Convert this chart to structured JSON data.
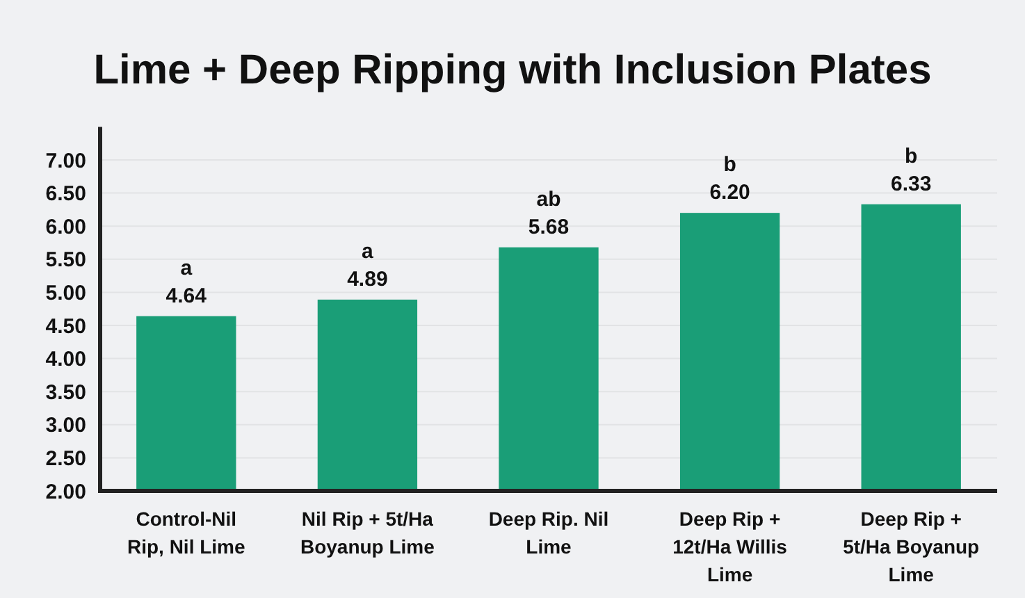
{
  "chart_data": {
    "type": "bar",
    "title": "Lime + Deep Ripping with Inclusion Plates",
    "categories": [
      "Control-Nil Rip, Nil Lime",
      "Nil Rip + 5t/Ha Boyanup Lime",
      "Deep Rip. Nil Lime",
      "Deep Rip + 12t/Ha Willis Lime",
      "Deep Rip + 5t/Ha Boyanup Lime"
    ],
    "values": [
      4.64,
      4.89,
      5.68,
      6.2,
      6.33
    ],
    "color": "#1a9e77",
    "data_labels": true,
    "value_labels": [
      "4.64",
      "4.89",
      "5.68",
      "6.20",
      "6.33"
    ],
    "annotations": [
      {
        "text": "a",
        "x": "Control-Nil Rip, Nil Lime",
        "y": 4.64
      },
      {
        "text": "a",
        "x": "Nil Rip + 5t/Ha Boyanup Lime",
        "y": 4.89
      },
      {
        "text": "ab",
        "x": "Deep Rip. Nil Lime",
        "y": 5.68
      },
      {
        "text": "b",
        "x": "Deep Rip + 12t/Ha Willis Lime",
        "y": 6.2
      },
      {
        "text": "b",
        "x": "Deep Rip + 5t/Ha Boyanup Lime",
        "y": 6.33
      }
    ],
    "ylim": [
      2,
      7.5
    ],
    "yticks": [
      {
        "value": 2,
        "label": "2.00"
      },
      {
        "value": 2.5,
        "label": "2.50"
      },
      {
        "value": 3,
        "label": "3.00"
      },
      {
        "value": 3.5,
        "label": "3.50"
      },
      {
        "value": 4,
        "label": "4.00"
      },
      {
        "value": 4.5,
        "label": "4.50"
      },
      {
        "value": 5,
        "label": "5.00"
      },
      {
        "value": 5.5,
        "label": "5.50"
      },
      {
        "value": 6,
        "label": "6.00"
      },
      {
        "value": 6.5,
        "label": "6.50"
      },
      {
        "value": 7,
        "label": "7.00"
      }
    ],
    "grid": "y"
  }
}
